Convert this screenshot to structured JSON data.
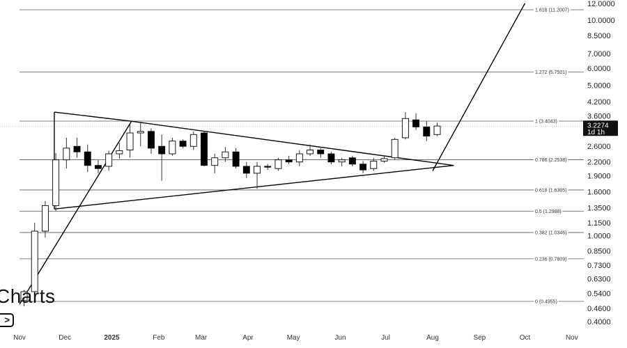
{
  "chart_data": {
    "type": "candlestick",
    "y_scale": "log",
    "ylim": [
      0.37,
      12.6
    ],
    "price_ticks": [
      "12.0000",
      "10.0000",
      "8.5000",
      "7.0000",
      "6.0000",
      "5.0000",
      "4.2000",
      "3.6000",
      "2.6000",
      "2.2000",
      "1.9000",
      "1.6000",
      "1.3500",
      "1.1500",
      "1.0000",
      "0.8500",
      "0.7300",
      "0.6300",
      "0.5400",
      "0.4600",
      "0.4000"
    ],
    "date_ticks": [
      {
        "label": "Nov",
        "date": "2024-11-01"
      },
      {
        "label": "Dec",
        "date": "2024-12-01"
      },
      {
        "label": "2025",
        "date": "2025-01-01",
        "bold": true
      },
      {
        "label": "Feb",
        "date": "2025-02-01"
      },
      {
        "label": "Mar",
        "date": "2025-03-01"
      },
      {
        "label": "Apr",
        "date": "2025-04-01"
      },
      {
        "label": "May",
        "date": "2025-05-01"
      },
      {
        "label": "Jun",
        "date": "2025-06-01"
      },
      {
        "label": "Jul",
        "date": "2025-07-01"
      },
      {
        "label": "Aug",
        "date": "2025-08-01"
      },
      {
        "label": "Sep",
        "date": "2025-09-01"
      },
      {
        "label": "Oct",
        "date": "2025-10-01"
      },
      {
        "label": "Nov",
        "date": "2025-11-01"
      }
    ],
    "current_price": {
      "price": 3.2274,
      "label": "3.2274",
      "countdown": "1d 1h"
    },
    "fib_levels": [
      {
        "label": "1.618 (11.2007)",
        "price": 11.2007
      },
      {
        "label": "1.272 (5.7501)",
        "price": 5.7501
      },
      {
        "label": "1 (3.4043)",
        "price": 3.4043
      },
      {
        "label": "0.786 (2.2538)",
        "price": 2.2538
      },
      {
        "label": "0.618 (1.6305)",
        "price": 1.6305
      },
      {
        "label": "0.5 (1.2988)",
        "price": 1.2988
      },
      {
        "label": "0.382 (1.0346)",
        "price": 1.0346
      },
      {
        "label": "0.236 (0.7809)",
        "price": 0.7809
      },
      {
        "label": "0 (0.4955)",
        "price": 0.4955
      }
    ],
    "candles": [
      {
        "date": "2024-11-04",
        "o": 0.5,
        "h": 0.56,
        "l": 0.47,
        "c": 0.55
      },
      {
        "date": "2024-11-11",
        "o": 0.55,
        "h": 1.15,
        "l": 0.53,
        "c": 1.05
      },
      {
        "date": "2024-11-18",
        "o": 1.05,
        "h": 1.45,
        "l": 0.98,
        "c": 1.38
      },
      {
        "date": "2024-11-25",
        "o": 1.38,
        "h": 2.42,
        "l": 1.3,
        "c": 2.25
      },
      {
        "date": "2024-12-02",
        "o": 2.25,
        "h": 2.85,
        "l": 2.05,
        "c": 2.55
      },
      {
        "date": "2024-12-09",
        "o": 2.6,
        "h": 2.85,
        "l": 2.3,
        "c": 2.45
      },
      {
        "date": "2024-12-16",
        "o": 2.45,
        "h": 2.65,
        "l": 1.98,
        "c": 2.12
      },
      {
        "date": "2024-12-23",
        "o": 2.12,
        "h": 2.25,
        "l": 1.95,
        "c": 2.05
      },
      {
        "date": "2024-12-30",
        "o": 2.1,
        "h": 2.48,
        "l": 2.0,
        "c": 2.4
      },
      {
        "date": "2025-01-06",
        "o": 2.4,
        "h": 2.7,
        "l": 2.28,
        "c": 2.48
      },
      {
        "date": "2025-01-13",
        "o": 2.5,
        "h": 3.3,
        "l": 2.3,
        "c": 3.0
      },
      {
        "date": "2025-01-20",
        "o": 3.0,
        "h": 3.35,
        "l": 2.6,
        "c": 3.05
      },
      {
        "date": "2025-01-27",
        "o": 3.05,
        "h": 3.15,
        "l": 2.4,
        "c": 2.55
      },
      {
        "date": "2025-02-03",
        "o": 2.6,
        "h": 2.95,
        "l": 1.8,
        "c": 2.4
      },
      {
        "date": "2025-02-10",
        "o": 2.4,
        "h": 2.85,
        "l": 2.35,
        "c": 2.75
      },
      {
        "date": "2025-02-17",
        "o": 2.75,
        "h": 2.8,
        "l": 2.55,
        "c": 2.6
      },
      {
        "date": "2025-02-24",
        "o": 2.6,
        "h": 3.05,
        "l": 2.5,
        "c": 2.95
      },
      {
        "date": "2025-03-03",
        "o": 3.0,
        "h": 3.05,
        "l": 2.1,
        "c": 2.12
      },
      {
        "date": "2025-03-10",
        "o": 2.12,
        "h": 2.4,
        "l": 1.95,
        "c": 2.3
      },
      {
        "date": "2025-03-17",
        "o": 2.3,
        "h": 2.58,
        "l": 2.2,
        "c": 2.45
      },
      {
        "date": "2025-03-24",
        "o": 2.45,
        "h": 2.55,
        "l": 2.05,
        "c": 2.1
      },
      {
        "date": "2025-03-31",
        "o": 2.1,
        "h": 2.2,
        "l": 1.85,
        "c": 1.95
      },
      {
        "date": "2025-04-07",
        "o": 1.95,
        "h": 2.2,
        "l": 1.65,
        "c": 2.1
      },
      {
        "date": "2025-04-14",
        "o": 2.1,
        "h": 2.15,
        "l": 2.02,
        "c": 2.08
      },
      {
        "date": "2025-04-21",
        "o": 2.05,
        "h": 2.3,
        "l": 2.0,
        "c": 2.25
      },
      {
        "date": "2025-04-28",
        "o": 2.25,
        "h": 2.35,
        "l": 2.15,
        "c": 2.2
      },
      {
        "date": "2025-05-05",
        "o": 2.2,
        "h": 2.5,
        "l": 2.1,
        "c": 2.4
      },
      {
        "date": "2025-05-12",
        "o": 2.4,
        "h": 2.65,
        "l": 2.35,
        "c": 2.5
      },
      {
        "date": "2025-05-19",
        "o": 2.5,
        "h": 2.55,
        "l": 2.3,
        "c": 2.4
      },
      {
        "date": "2025-05-26",
        "o": 2.4,
        "h": 2.45,
        "l": 2.15,
        "c": 2.2
      },
      {
        "date": "2025-06-02",
        "o": 2.2,
        "h": 2.3,
        "l": 2.1,
        "c": 2.25
      },
      {
        "date": "2025-06-09",
        "o": 2.3,
        "h": 2.35,
        "l": 2.1,
        "c": 2.15
      },
      {
        "date": "2025-06-16",
        "o": 2.15,
        "h": 2.22,
        "l": 1.95,
        "c": 2.02
      },
      {
        "date": "2025-06-23",
        "o": 2.05,
        "h": 2.3,
        "l": 2.0,
        "c": 2.22
      },
      {
        "date": "2025-06-30",
        "o": 2.22,
        "h": 2.35,
        "l": 2.18,
        "c": 2.28
      },
      {
        "date": "2025-07-07",
        "o": 2.3,
        "h": 2.85,
        "l": 2.25,
        "c": 2.8
      },
      {
        "date": "2025-07-14",
        "o": 2.85,
        "h": 3.75,
        "l": 2.8,
        "c": 3.5
      },
      {
        "date": "2025-07-21",
        "o": 3.45,
        "h": 3.7,
        "l": 3.1,
        "c": 3.2
      },
      {
        "date": "2025-07-28",
        "o": 3.2,
        "h": 3.4,
        "l": 2.75,
        "c": 2.9
      },
      {
        "date": "2025-08-04",
        "o": 2.95,
        "h": 3.35,
        "l": 2.9,
        "c": 3.23
      }
    ],
    "trendlines": [
      {
        "from": {
          "date": "2024-11-24",
          "price": 3.75
        },
        "to": {
          "date": "2025-01-14",
          "price": 3.4
        }
      },
      {
        "from": {
          "date": "2025-01-14",
          "price": 3.4
        },
        "to": {
          "date": "2025-08-15",
          "price": 2.12
        }
      },
      {
        "from": {
          "date": "2024-11-24",
          "price": 3.75
        },
        "to": {
          "date": "2024-11-24",
          "price": 1.33
        }
      },
      {
        "from": {
          "date": "2024-11-24",
          "price": 1.33
        },
        "to": {
          "date": "2025-08-15",
          "price": 2.12
        }
      },
      {
        "from": {
          "date": "2024-11-01",
          "price": 0.48
        },
        "to": {
          "date": "2025-01-14",
          "price": 3.4
        }
      },
      {
        "from": {
          "date": "2025-08-01",
          "price": 2.0
        },
        "to": {
          "date": "2025-10-01",
          "price": 12.0
        }
      }
    ],
    "colors": {
      "up_body": "#ffffff",
      "down_body": "#000000",
      "wick": "#333333",
      "grid": "#555555",
      "price_tag": "#111111"
    }
  },
  "watermark": {
    "text": "Charts"
  },
  "play_button": {
    "label": ">"
  }
}
